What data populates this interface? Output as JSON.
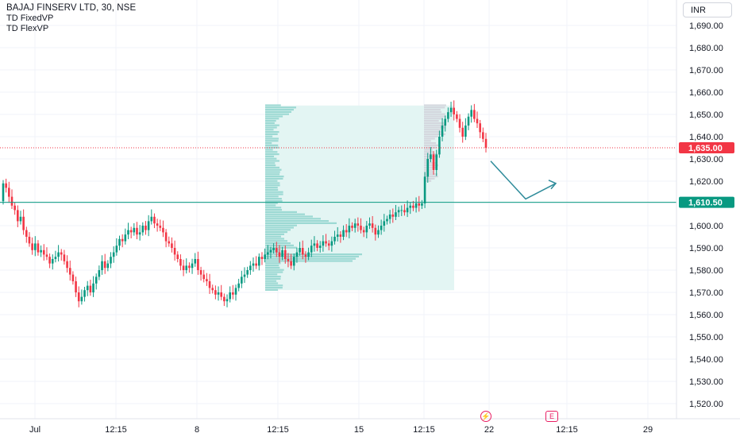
{
  "header": {
    "symbol_title": "BAJAJ FINSERV LTD, 30, NSE",
    "indicators": [
      "TD FixedVP",
      "TD FlexVP"
    ],
    "currency": "INR"
  },
  "chart_data": {
    "type": "candlestick",
    "title": "BAJAJ FINSERV LTD, 30, NSE",
    "ylim": [
      1515,
      1697
    ],
    "y_ticks": [
      1690,
      1680,
      1670,
      1660,
      1650,
      1640,
      1630,
      1620,
      1610,
      1600,
      1590,
      1580,
      1570,
      1560,
      1550,
      1540,
      1530,
      1520
    ],
    "y_tick_labels": [
      "1,690.00",
      "1,680.00",
      "1,670.00",
      "1,660.00",
      "1,650.00",
      "1,640.00",
      "1,630.00",
      "1,620.00",
      "1,610.00",
      "1,600.00",
      "1,590.00",
      "1,580.00",
      "1,570.00",
      "1,560.00",
      "1,550.00",
      "1,540.00",
      "1,530.00",
      "1,520.00"
    ],
    "x_tick_labels": [
      "Jul",
      "12:15",
      "8",
      "12:15",
      "15",
      "12:15",
      "22",
      "12:15",
      "29"
    ],
    "current_price": {
      "value": 1635.0,
      "label": "1,635.00",
      "color": "#f23645"
    },
    "horizontal_line": {
      "value": 1610.5,
      "label": "1,610.50",
      "color": "#089981"
    },
    "colors": {
      "up": "#089981",
      "down": "#f23645",
      "profile_fixed": "#8fd3cc",
      "profile_flex": "#d1d4dc",
      "range_box": "#e3f5f3",
      "arrow": "#2e8b9a"
    },
    "volume_profile_fixed": {
      "price_low": 1571,
      "price_high": 1654
    },
    "volume_profile_flex": {
      "price_low": 1620,
      "price_high": 1654
    },
    "projection_arrow": [
      [
        1629,
        null
      ],
      [
        1612,
        null
      ],
      [
        1619,
        null
      ]
    ],
    "markers": [
      "dividend-flash",
      "earnings-E"
    ],
    "closes": [
      1619,
      1617,
      1613,
      1609,
      1607,
      1602,
      1604,
      1598,
      1595,
      1592,
      1589,
      1592,
      1588,
      1589,
      1587,
      1586,
      1583,
      1585,
      1586,
      1588,
      1587,
      1584,
      1581,
      1578,
      1575,
      1570,
      1566,
      1568,
      1571,
      1573,
      1570,
      1574,
      1577,
      1580,
      1584,
      1581,
      1583,
      1586,
      1588,
      1591,
      1594,
      1593,
      1596,
      1598,
      1597,
      1599,
      1596,
      1597,
      1600,
      1598,
      1602,
      1604,
      1601,
      1600,
      1599,
      1597,
      1593,
      1592,
      1590,
      1587,
      1585,
      1582,
      1580,
      1582,
      1581,
      1583,
      1585,
      1580,
      1578,
      1576,
      1575,
      1572,
      1571,
      1569,
      1570,
      1568,
      1566,
      1567,
      1570,
      1569,
      1572,
      1574,
      1577,
      1578,
      1580,
      1582,
      1583,
      1582,
      1586,
      1585,
      1587,
      1588,
      1589,
      1590,
      1588,
      1586,
      1589,
      1585,
      1584,
      1582,
      1586,
      1588,
      1590,
      1587,
      1586,
      1588,
      1591,
      1592,
      1590,
      1591,
      1593,
      1592,
      1591,
      1593,
      1595,
      1596,
      1595,
      1598,
      1597,
      1600,
      1599,
      1601,
      1600,
      1598,
      1597,
      1600,
      1601,
      1599,
      1596,
      1598,
      1600,
      1602,
      1603,
      1605,
      1604,
      1606,
      1607,
      1607,
      1606,
      1608,
      1609,
      1608,
      1610,
      1609,
      1610,
      1622,
      1630,
      1632,
      1625,
      1632,
      1640,
      1645,
      1648,
      1651,
      1653,
      1650,
      1648,
      1644,
      1640,
      1645,
      1649,
      1652,
      1648,
      1646,
      1642,
      1639,
      1635
    ]
  }
}
